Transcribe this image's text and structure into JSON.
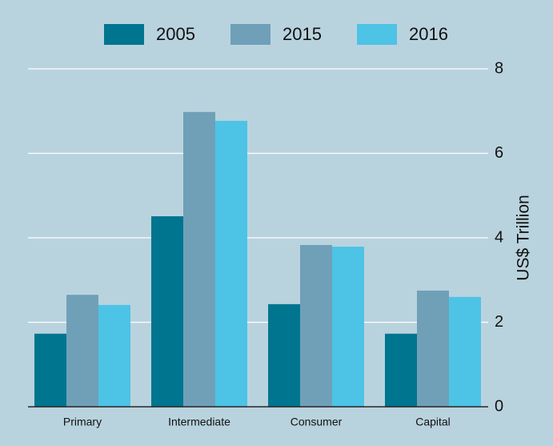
{
  "chart_data": {
    "type": "bar",
    "categories": [
      "Primary",
      "Intermediate",
      "Consumer",
      "Capital"
    ],
    "series": [
      {
        "name": "2005",
        "color": "#00758f",
        "values": [
          1.73,
          4.51,
          2.43,
          1.73
        ]
      },
      {
        "name": "2015",
        "color": "#6fa0b8",
        "values": [
          2.65,
          6.98,
          3.83,
          2.75
        ]
      },
      {
        "name": "2016",
        "color": "#4dc3e6",
        "values": [
          2.41,
          6.77,
          3.79,
          2.6
        ]
      }
    ],
    "y_label": "US$ Trillion",
    "ylim": [
      0,
      8
    ],
    "yticks": [
      0,
      2,
      4,
      6,
      8
    ],
    "grid": true,
    "legend": "top"
  }
}
